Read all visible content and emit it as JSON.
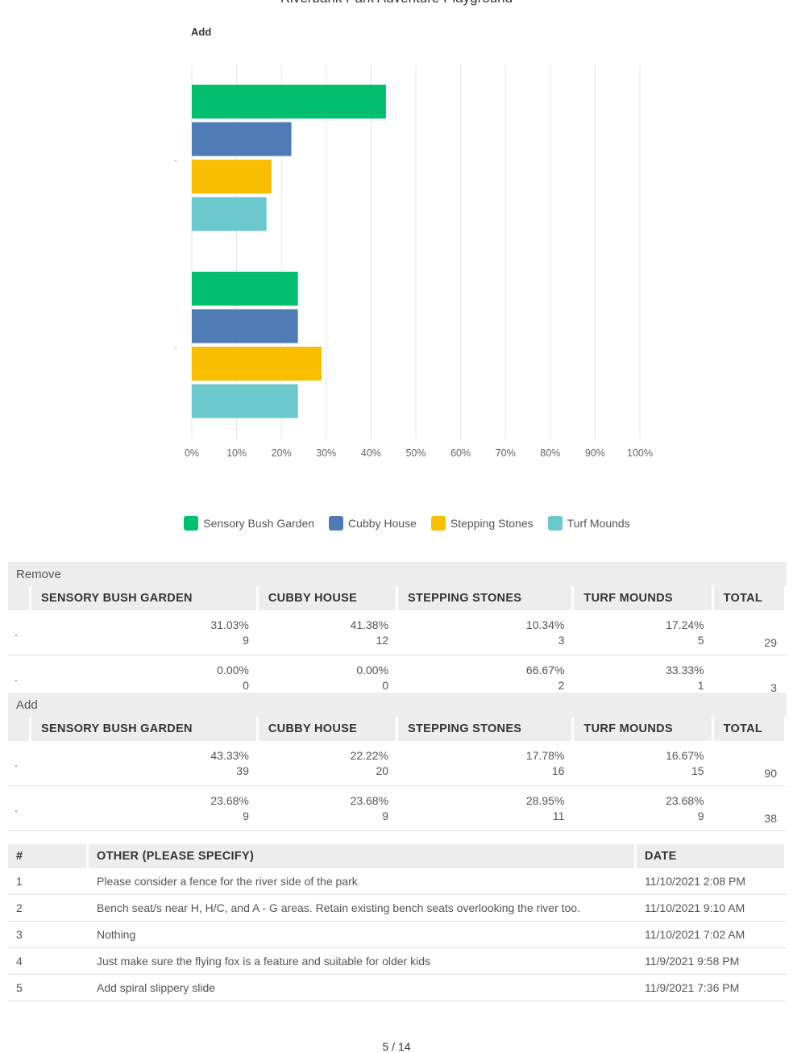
{
  "page_title": "Riverbank Park Adventure Playground",
  "page_number": "5 / 14",
  "chart_data": {
    "type": "bar",
    "orientation": "horizontal",
    "title": "Add",
    "categories": [
      ".",
      "."
    ],
    "series": [
      {
        "name": "Sensory Bush Garden",
        "color": "#00bf6f",
        "values": [
          43.33,
          23.68
        ]
      },
      {
        "name": "Cubby House",
        "color": "#507cb6",
        "values": [
          22.22,
          23.68
        ]
      },
      {
        "name": "Stepping Stones",
        "color": "#f9be00",
        "values": [
          17.78,
          28.95
        ]
      },
      {
        "name": "Turf Mounds",
        "color": "#6bc8cd",
        "values": [
          16.67,
          23.68
        ]
      }
    ],
    "xlim": [
      0,
      100
    ],
    "x_ticks": [
      "0%",
      "10%",
      "20%",
      "30%",
      "40%",
      "50%",
      "60%",
      "70%",
      "80%",
      "90%",
      "100%"
    ],
    "grid": true,
    "legend_position": "bottom"
  },
  "tables": [
    {
      "section": "Remove",
      "headers": [
        "SENSORY BUSH GARDEN",
        "CUBBY HOUSE",
        "STEPPING STONES",
        "TURF MOUNDS",
        "TOTAL"
      ],
      "rows": [
        {
          "label": ".",
          "cells": [
            [
              "31.03%",
              "9"
            ],
            [
              "41.38%",
              "12"
            ],
            [
              "10.34%",
              "3"
            ],
            [
              "17.24%",
              "5"
            ]
          ],
          "total": "29"
        },
        {
          "label": ".",
          "cells": [
            [
              "0.00%",
              "0"
            ],
            [
              "0.00%",
              "0"
            ],
            [
              "66.67%",
              "2"
            ],
            [
              "33.33%",
              "1"
            ]
          ],
          "total": "3"
        }
      ]
    },
    {
      "section": "Add",
      "headers": [
        "SENSORY BUSH GARDEN",
        "CUBBY HOUSE",
        "STEPPING STONES",
        "TURF MOUNDS",
        "TOTAL"
      ],
      "rows": [
        {
          "label": ".",
          "cells": [
            [
              "43.33%",
              "39"
            ],
            [
              "22.22%",
              "20"
            ],
            [
              "17.78%",
              "16"
            ],
            [
              "16.67%",
              "15"
            ]
          ],
          "total": "90"
        },
        {
          "label": ".",
          "cells": [
            [
              "23.68%",
              "9"
            ],
            [
              "23.68%",
              "9"
            ],
            [
              "28.95%",
              "11"
            ],
            [
              "23.68%",
              "9"
            ]
          ],
          "total": "38"
        }
      ]
    }
  ],
  "comments": {
    "headers": [
      "#",
      "OTHER (PLEASE SPECIFY)",
      "DATE"
    ],
    "rows": [
      {
        "num": "1",
        "text": "Please consider a fence for the river side of the park",
        "date": "11/10/2021 2:08 PM"
      },
      {
        "num": "2",
        "text": "Bench seat/s near H, H/C, and A - G areas. Retain existing bench seats overlooking the river too.",
        "date": "11/10/2021 9:10 AM"
      },
      {
        "num": "3",
        "text": "Nothing",
        "date": "11/10/2021 7:02 AM"
      },
      {
        "num": "4",
        "text": "Just make sure the flying fox is a feature and suitable for older kids",
        "date": "11/9/2021 9:58 PM"
      },
      {
        "num": "5",
        "text": "Add spiral slippery slide",
        "date": "11/9/2021 7:36 PM"
      }
    ]
  }
}
